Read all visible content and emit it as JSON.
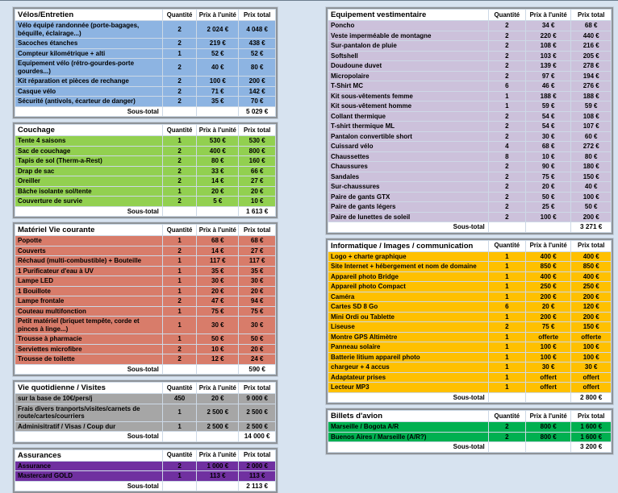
{
  "page": {
    "background": "#d7e3f0",
    "currency": "€"
  },
  "shared": {
    "column_headers": {
      "qty": "Quantité",
      "unit": "Prix à l'unité",
      "total": "Prix total"
    },
    "subtotal_label": "Sous-total"
  },
  "columns": [
    {
      "name": "left",
      "tables": [
        {
          "slug": "velos-entretien",
          "title": "Vélos/Entretien",
          "row_color": "#8db4e2",
          "rows": [
            {
              "label": "Vélo équipé randonnée (porte-bagages, béquille, éclairage...)",
              "qty": "2",
              "unit": "2 024 €",
              "total": "4 048 €"
            },
            {
              "label": "Sacoches étanches",
              "qty": "2",
              "unit": "219 €",
              "total": "438 €"
            },
            {
              "label": "Compteur kilométrique + alti",
              "qty": "1",
              "unit": "52 €",
              "total": "52 €"
            },
            {
              "label": "Equipement vélo (rétro-gourdes-porte gourdes...)",
              "qty": "2",
              "unit": "40 €",
              "total": "80 €"
            },
            {
              "label": "Kit réparation et pièces de rechange",
              "qty": "2",
              "unit": "100 €",
              "total": "200 €"
            },
            {
              "label": "Casque vélo",
              "qty": "2",
              "unit": "71 €",
              "total": "142 €"
            },
            {
              "label": "Sécurité (antivols, écarteur de danger)",
              "qty": "2",
              "unit": "35 €",
              "total": "70 €"
            }
          ],
          "subtotal": "5 029 €"
        },
        {
          "slug": "couchage",
          "title": "Couchage",
          "row_color": "#92d050",
          "rows": [
            {
              "label": "Tente 4 saisons",
              "qty": "1",
              "unit": "530 €",
              "total": "530 €"
            },
            {
              "label": "Sac de couchage",
              "qty": "2",
              "unit": "400 €",
              "total": "800 €"
            },
            {
              "label": "Tapis de sol (Therm-a-Rest)",
              "qty": "2",
              "unit": "80 €",
              "total": "160 €"
            },
            {
              "label": "Drap de sac",
              "qty": "2",
              "unit": "33 €",
              "total": "66 €"
            },
            {
              "label": "Oreiller",
              "qty": "2",
              "unit": "14 €",
              "total": "27 €"
            },
            {
              "label": "Bâche isolante sol/tente",
              "qty": "1",
              "unit": "20 €",
              "total": "20 €"
            },
            {
              "label": "Couverture de survie",
              "qty": "2",
              "unit": "5 €",
              "total": "10 €"
            }
          ],
          "subtotal": "1 613 €"
        },
        {
          "slug": "materiel-vie-courante",
          "title": "Matériel Vie courante",
          "row_color": "#d87c6a",
          "rows": [
            {
              "label": "Popotte",
              "qty": "1",
              "unit": "68 €",
              "total": "68 €"
            },
            {
              "label": "Couverts",
              "qty": "2",
              "unit": "14 €",
              "total": "27 €"
            },
            {
              "label": "Réchaud (multi-combustible) + Bouteille",
              "qty": "1",
              "unit": "117 €",
              "total": "117 €"
            },
            {
              "label": "1 Purificateur d'eau à UV",
              "qty": "1",
              "unit": "35 €",
              "total": "35 €"
            },
            {
              "label": "Lampe LED",
              "qty": "1",
              "unit": "30 €",
              "total": "30 €"
            },
            {
              "label": "1 Bouillote",
              "qty": "1",
              "unit": "20 €",
              "total": "20 €"
            },
            {
              "label": "Lampe frontale",
              "qty": "2",
              "unit": "47 €",
              "total": "94 €"
            },
            {
              "label": "Couteau multifonction",
              "qty": "1",
              "unit": "75 €",
              "total": "75 €"
            },
            {
              "label": "Petit matériel (briquet tempête, corde et pinces à linge...)",
              "qty": "1",
              "unit": "30 €",
              "total": "30 €"
            },
            {
              "label": "Trousse à pharmacie",
              "qty": "1",
              "unit": "50 €",
              "total": "50 €"
            },
            {
              "label": "Serviettes microfibre",
              "qty": "2",
              "unit": "10 €",
              "total": "20 €"
            },
            {
              "label": "Trousse de toilette",
              "qty": "2",
              "unit": "12 €",
              "total": "24 €"
            }
          ],
          "subtotal": "590 €"
        },
        {
          "slug": "vie-quotidienne-visites",
          "title": "Vie quotidienne / Visites",
          "row_color": "#a6a6a6",
          "rows": [
            {
              "label": "sur la base de 10€/pers/j",
              "qty": "450",
              "unit": "20 €",
              "total": "9 000 €"
            },
            {
              "label": "Frais divers tranports/visites/carnets de route/cartes/courriers",
              "qty": "1",
              "unit": "2 500 €",
              "total": "2 500 €"
            },
            {
              "label": "Adminisitratif / Visas / Coup dur",
              "qty": "1",
              "unit": "2 500 €",
              "total": "2 500 €"
            }
          ],
          "subtotal": "14 000 €"
        },
        {
          "slug": "assurances",
          "title": "Assurances",
          "row_color": "#7030a0",
          "rows": [
            {
              "label": "Assurance",
              "qty": "2",
              "unit": "1 000 €",
              "total": "2 000 €"
            },
            {
              "label": "Mastercard GOLD",
              "qty": "1",
              "unit": "113 €",
              "total": "113 €"
            }
          ],
          "subtotal": "2 113 €"
        }
      ]
    },
    {
      "name": "right",
      "tables": [
        {
          "slug": "equipement-vestimentaire",
          "title": "Equipement vestimentaire",
          "row_color": "#ccc1db",
          "rows": [
            {
              "label": "Poncho",
              "qty": "2",
              "unit": "34 €",
              "total": "68 €"
            },
            {
              "label": "Veste imperméable de montagne",
              "qty": "2",
              "unit": "220 €",
              "total": "440 €"
            },
            {
              "label": "Sur-pantalon de pluie",
              "qty": "2",
              "unit": "108 €",
              "total": "216 €"
            },
            {
              "label": "Softshell",
              "qty": "2",
              "unit": "103 €",
              "total": "205 €"
            },
            {
              "label": "Doudoune duvet",
              "qty": "2",
              "unit": "139 €",
              "total": "278 €"
            },
            {
              "label": "Micropolaire",
              "qty": "2",
              "unit": "97 €",
              "total": "194 €"
            },
            {
              "label": "T-Shirt MC",
              "qty": "6",
              "unit": "46 €",
              "total": "276 €"
            },
            {
              "label": "Kit sous-vêtements femme",
              "qty": "1",
              "unit": "188 €",
              "total": "188 €"
            },
            {
              "label": "Kit sous-vêtement homme",
              "qty": "1",
              "unit": "59 €",
              "total": "59 €"
            },
            {
              "label": "Collant thermique",
              "qty": "2",
              "unit": "54 €",
              "total": "108 €"
            },
            {
              "label": "T-shirt thermique ML",
              "qty": "2",
              "unit": "54 €",
              "total": "107 €"
            },
            {
              "label": "Pantalon convertible short",
              "qty": "2",
              "unit": "30 €",
              "total": "60 €"
            },
            {
              "label": "Cuissard vélo",
              "qty": "4",
              "unit": "68 €",
              "total": "272 €"
            },
            {
              "label": "Chaussettes",
              "qty": "8",
              "unit": "10 €",
              "total": "80 €"
            },
            {
              "label": "Chaussures",
              "qty": "2",
              "unit": "90 €",
              "total": "180 €"
            },
            {
              "label": "Sandales",
              "qty": "2",
              "unit": "75 €",
              "total": "150 €"
            },
            {
              "label": "Sur-chaussures",
              "qty": "2",
              "unit": "20 €",
              "total": "40 €"
            },
            {
              "label": "Paire de gants GTX",
              "qty": "2",
              "unit": "50 €",
              "total": "100 €"
            },
            {
              "label": "Paire de gants légers",
              "qty": "2",
              "unit": "25 €",
              "total": "50 €"
            },
            {
              "label": "Paire de lunettes de soleil",
              "qty": "2",
              "unit": "100 €",
              "total": "200 €"
            }
          ],
          "subtotal": "3 271 €"
        },
        {
          "slug": "informatique-images-communication",
          "title": "Informatique / Images / communication",
          "row_color": "#ffc000",
          "rows": [
            {
              "label": "Logo + charte graphique",
              "qty": "1",
              "unit": "400 €",
              "total": "400 €"
            },
            {
              "label": "Site Internet + hébergement et nom de domaine",
              "qty": "1",
              "unit": "850 €",
              "total": "850 €"
            },
            {
              "label": "Appareil photo Bridge",
              "qty": "1",
              "unit": "400 €",
              "total": "400 €"
            },
            {
              "label": "Appareil photo Compact",
              "qty": "1",
              "unit": "250 €",
              "total": "250 €"
            },
            {
              "label": "Caméra",
              "qty": "1",
              "unit": "200 €",
              "total": "200 €"
            },
            {
              "label": "Cartes SD 8 Go",
              "qty": "6",
              "unit": "20 €",
              "total": "120 €"
            },
            {
              "label": "Mini Ordi ou Tablette",
              "qty": "1",
              "unit": "200 €",
              "total": "200 €"
            },
            {
              "label": "Liseuse",
              "qty": "2",
              "unit": "75 €",
              "total": "150 €"
            },
            {
              "label": "Montre GPS Altimètre",
              "qty": "1",
              "unit": "offerte",
              "total": "offerte"
            },
            {
              "label": "Panneau solaire",
              "qty": "1",
              "unit": "100 €",
              "total": "100 €"
            },
            {
              "label": "Batterie litium appareil photo",
              "qty": "1",
              "unit": "100 €",
              "total": "100 €"
            },
            {
              "label": "chargeur + 4 accus",
              "qty": "1",
              "unit": "30 €",
              "total": "30 €"
            },
            {
              "label": "Adaptateur prises",
              "qty": "1",
              "unit": "offert",
              "total": "offert"
            },
            {
              "label": "Lecteur MP3",
              "qty": "1",
              "unit": "offert",
              "total": "offert"
            }
          ],
          "subtotal": "2 800 €"
        },
        {
          "slug": "billets-avion",
          "title": "Billets d'avion",
          "row_color": "#00b050",
          "rows": [
            {
              "label": "Marseille / Bogota A/R",
              "qty": "2",
              "unit": "800 €",
              "total": "1 600 €"
            },
            {
              "label": "Buenos Aires / Marseille (A/R?)",
              "qty": "2",
              "unit": "800 €",
              "total": "1 600 €"
            }
          ],
          "subtotal": "3 200 €"
        }
      ]
    }
  ]
}
